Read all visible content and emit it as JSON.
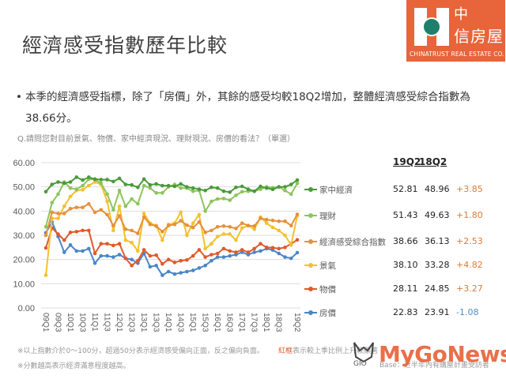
{
  "header": {
    "title": "經濟感受指數歷年比較"
  },
  "logo": {
    "cn_line1": "中",
    "cn_line2": "信房屋",
    "en": "CHINATRUST REAL ESTATE CO.",
    "brand_color": "#e8643a"
  },
  "summary": {
    "bullet": "•",
    "line1": "本季的經濟感受指標，除了「房價」外，其餘的感受均較18Q2增加，整體經濟感受綜合指數為",
    "line2": "38.66分。"
  },
  "question": "Q.請問您對目前景氣、物價、家中經濟現況、理財現況、房價的看法？（單選）",
  "table": {
    "col1": "19Q2",
    "col2": "18Q2",
    "rows": [
      {
        "label": "家中經濟",
        "v19q2": "52.81",
        "v18q2": "48.96",
        "diff": "+3.85",
        "sign": "pos",
        "color": "#4a9a3a"
      },
      {
        "label": "理財",
        "v19q2": "51.43",
        "v18q2": "49.63",
        "diff": "+1.80",
        "sign": "pos",
        "color": "#8dc45e"
      },
      {
        "label": "經濟感受綜合指數",
        "v19q2": "38.66",
        "v18q2": "36.13",
        "diff": "+2.53",
        "sign": "pos",
        "color": "#e6903a"
      },
      {
        "label": "景氣",
        "v19q2": "38.10",
        "v18q2": "33.28",
        "diff": "+4.82",
        "sign": "pos",
        "color": "#f2c12e"
      },
      {
        "label": "物價",
        "v19q2": "28.11",
        "v18q2": "24.85",
        "diff": "+3.27",
        "sign": "pos",
        "color": "#e05a2a"
      },
      {
        "label": "房價",
        "v19q2": "22.83",
        "v18q2": "23.91",
        "diff": "-1.08",
        "sign": "neg",
        "color": "#4a86c5"
      }
    ]
  },
  "footnotes": {
    "note1": "※以上指數介於0～100分，超過50分表示經濟感受偏向正面，反之偏向負面。",
    "note2": "※分數越高表示經濟滿意程度越高。",
    "red_label": "紅框",
    "note3": "表示較上季比例上升較顯著",
    "note4": "Base：近半年內有購屋計畫受訪者"
  },
  "watermark": {
    "gio": "GIO",
    "brand": "MyGoNews"
  },
  "chart_data": {
    "type": "line",
    "title": "",
    "xlabel": "",
    "ylabel": "",
    "ylim": [
      0,
      60
    ],
    "yticks": [
      "0.00",
      "10.00",
      "20.00",
      "30.00",
      "40.00",
      "50.00",
      "60.00"
    ],
    "grid": true,
    "legend_position": "right",
    "x": [
      "09Q1",
      "09Q2",
      "09Q3",
      "09Q4",
      "10Q1",
      "10Q2",
      "10Q3",
      "10Q4",
      "11Q1",
      "11Q2",
      "11Q3",
      "11Q4",
      "12Q1",
      "12Q2",
      "12Q3",
      "12Q4",
      "13Q1",
      "13Q2",
      "13Q3",
      "13Q4",
      "14Q1",
      "14Q2",
      "14Q3",
      "14Q4",
      "15Q1",
      "15Q2",
      "15Q3",
      "15Q4",
      "16Q1",
      "16Q2",
      "16Q3",
      "16Q4",
      "17Q1",
      "17Q2",
      "17Q3",
      "17Q4",
      "18Q1",
      "18Q2",
      "18Q3",
      "18Q4",
      "19Q1",
      "19Q2"
    ],
    "x_tick_labels": [
      "09Q1",
      "09Q3",
      "10Q1",
      "10Q3",
      "11Q1",
      "11Q3",
      "12Q1",
      "12Q3",
      "13Q1",
      "13Q3",
      "14Q1",
      "14Q3",
      "15Q1",
      "15Q3",
      "16Q1",
      "16Q3",
      "17Q1",
      "17Q3",
      "18Q1",
      "18Q3",
      "19Q2"
    ],
    "series": [
      {
        "name": "家中經濟",
        "color": "#4a9a3a",
        "values": [
          48.0,
          51.0,
          52.0,
          51.5,
          52.0,
          54.0,
          52.8,
          54.0,
          53.2,
          53.0,
          53.0,
          52.2,
          53.5,
          51.0,
          50.8,
          49.8,
          53.2,
          50.8,
          51.2,
          50.5,
          50.5,
          50.2,
          51.2,
          50.0,
          49.5,
          49.0,
          48.5,
          49.8,
          49.5,
          48.2,
          47.8,
          49.8,
          50.2,
          49.0,
          48.2,
          50.2,
          49.5,
          48.96,
          50.0,
          50.0,
          51.0,
          52.81
        ]
      },
      {
        "name": "理財",
        "color": "#8dc45e",
        "values": [
          33.5,
          43.5,
          47.0,
          52.0,
          49.5,
          49.0,
          50.5,
          53.2,
          53.0,
          51.5,
          47.0,
          40.5,
          48.5,
          42.0,
          45.0,
          43.0,
          50.5,
          49.5,
          47.5,
          47.5,
          50.0,
          51.0,
          49.5,
          49.5,
          48.2,
          48.5,
          40.0,
          44.0,
          45.0,
          45.2,
          44.5,
          46.5,
          48.0,
          48.2,
          48.2,
          49.0,
          50.0,
          49.63,
          50.0,
          48.5,
          47.0,
          51.43
        ]
      },
      {
        "name": "經濟感受綜合指數",
        "color": "#e6903a",
        "values": [
          30.0,
          39.5,
          39.0,
          39.0,
          41.0,
          41.5,
          41.5,
          43.0,
          39.5,
          40.5,
          38.5,
          34.0,
          38.0,
          32.5,
          32.0,
          30.8,
          37.5,
          34.5,
          33.8,
          31.5,
          34.0,
          34.5,
          36.0,
          34.2,
          33.2,
          35.5,
          31.2,
          32.0,
          33.5,
          33.8,
          33.5,
          32.8,
          35.0,
          34.0,
          33.8,
          37.0,
          36.5,
          36.13,
          35.8,
          35.8,
          34.0,
          38.66
        ]
      },
      {
        "name": "景氣",
        "color": "#f2c12e",
        "values": [
          13.5,
          37.0,
          37.0,
          42.0,
          46.0,
          48.5,
          48.8,
          50.5,
          52.0,
          51.0,
          44.0,
          32.0,
          42.0,
          28.0,
          27.0,
          23.5,
          39.0,
          35.0,
          34.0,
          28.0,
          34.5,
          35.0,
          39.5,
          30.0,
          35.0,
          38.5,
          24.5,
          26.5,
          29.5,
          30.5,
          30.5,
          28.0,
          33.0,
          34.0,
          32.5,
          37.5,
          35.0,
          33.28,
          32.0,
          30.0,
          26.0,
          38.1
        ]
      },
      {
        "name": "物價",
        "color": "#e05a2a",
        "values": [
          24.8,
          33.0,
          30.5,
          28.0,
          31.2,
          31.5,
          32.0,
          32.0,
          22.5,
          26.5,
          26.5,
          25.8,
          26.5,
          20.5,
          17.5,
          19.5,
          24.0,
          21.5,
          21.8,
          18.2,
          20.0,
          18.8,
          19.5,
          19.8,
          21.5,
          24.0,
          21.0,
          22.0,
          22.5,
          24.5,
          23.5,
          23.0,
          24.0,
          23.0,
          24.5,
          26.5,
          25.0,
          24.85,
          24.5,
          25.0,
          26.5,
          28.11
        ]
      },
      {
        "name": "房價",
        "color": "#4a86c5",
        "values": [
          31.0,
          35.5,
          29.5,
          23.0,
          26.0,
          23.5,
          23.5,
          24.5,
          18.5,
          21.5,
          21.5,
          21.0,
          22.0,
          20.5,
          20.0,
          18.5,
          22.5,
          17.0,
          17.5,
          13.5,
          15.0,
          14.0,
          14.5,
          15.0,
          15.5,
          16.5,
          17.5,
          19.5,
          21.0,
          21.0,
          21.5,
          22.0,
          23.0,
          22.0,
          23.0,
          23.5,
          24.5,
          23.91,
          22.5,
          21.0,
          20.5,
          22.83
        ]
      }
    ]
  }
}
